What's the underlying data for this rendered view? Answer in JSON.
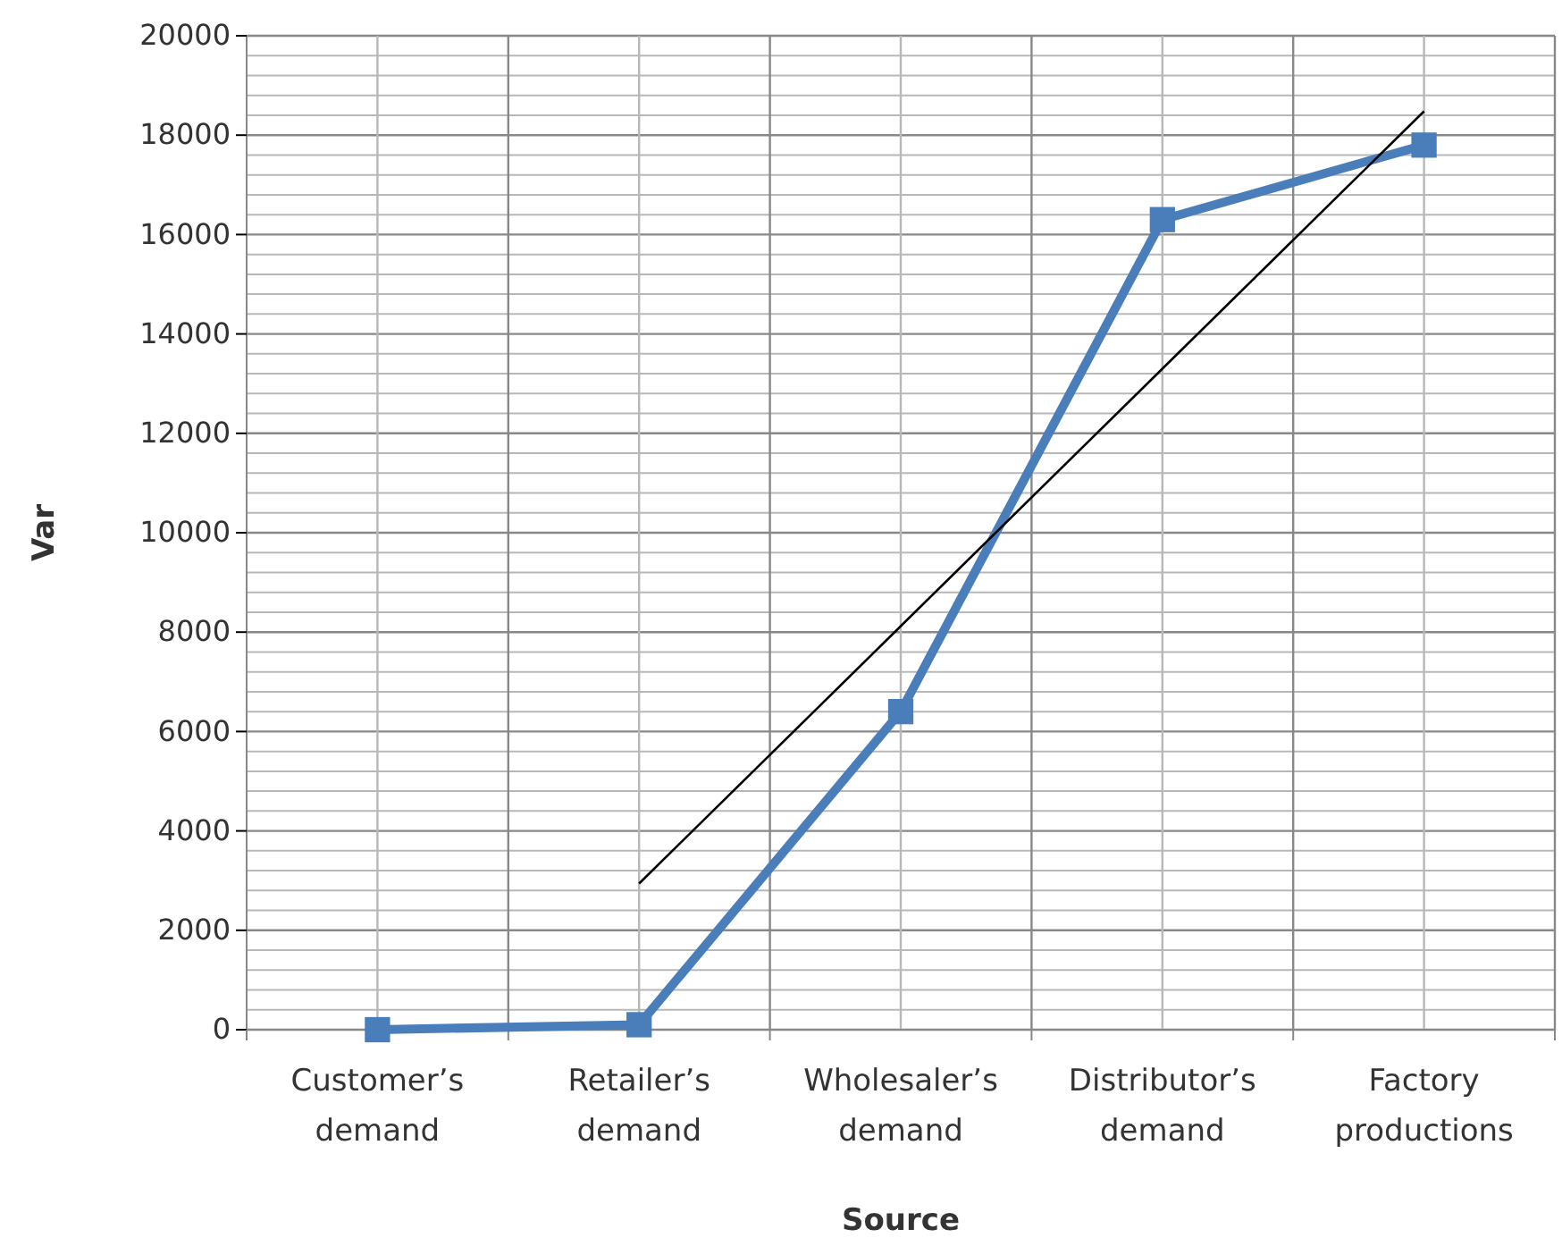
{
  "chart_data": {
    "type": "line",
    "xlabel": "Source",
    "ylabel": "Var",
    "categories": [
      "Customer’s demand",
      "Retailer’s demand",
      "Wholesaler’s demand",
      "Distributor’s demand",
      "Factory productions"
    ],
    "series": [
      {
        "color": "#4a7ebb",
        "values": [
          0,
          100,
          6400,
          16300,
          17800
        ],
        "marker": "square"
      },
      {
        "type": "line",
        "color": "#000000",
        "values": [
          null,
          2940,
          8120,
          13300,
          18480
        ],
        "marker": "none"
      }
    ],
    "ylim": [
      0,
      20000
    ],
    "yticks": [
      0,
      2000,
      4000,
      6000,
      8000,
      10000,
      12000,
      14000,
      16000,
      18000,
      20000
    ],
    "grid": true
  }
}
